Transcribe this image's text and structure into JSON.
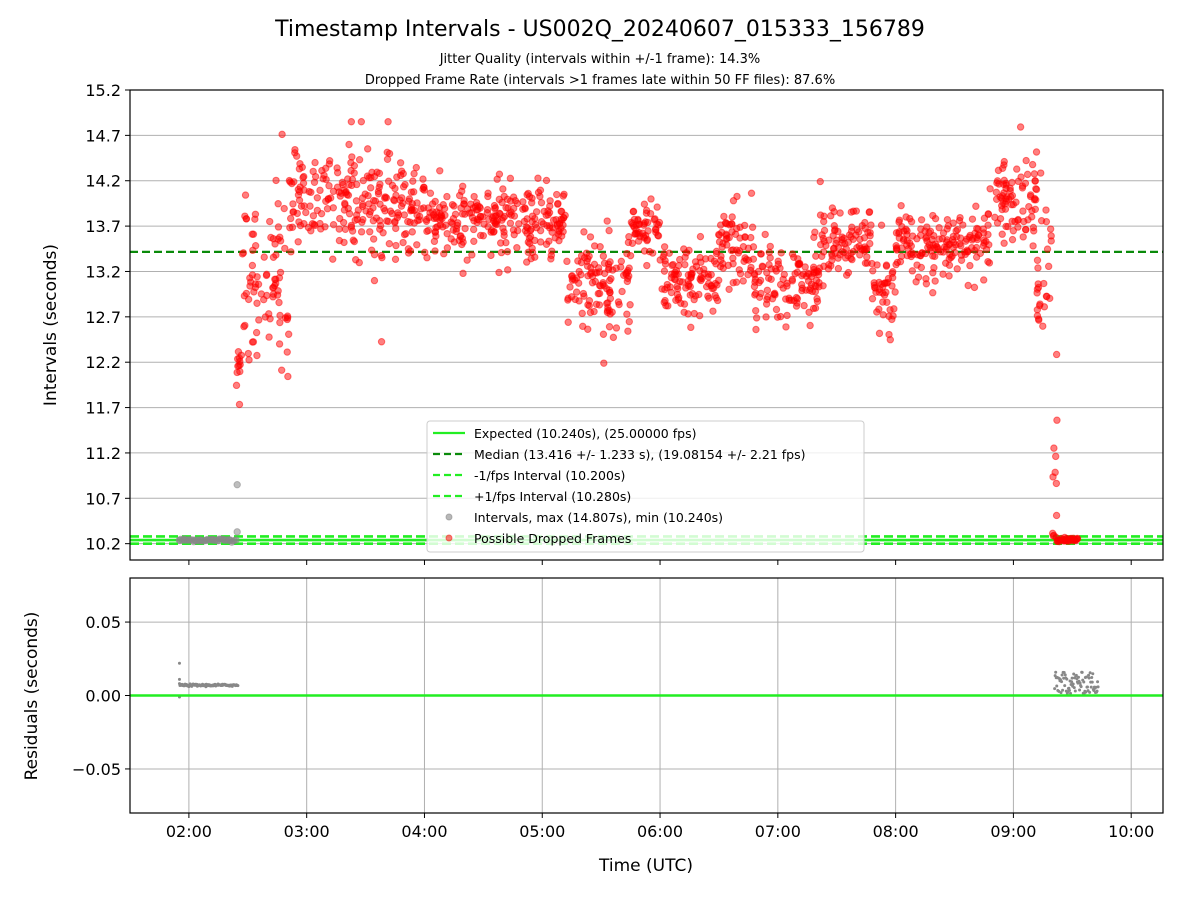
{
  "colors": {
    "expected": "#22ee22",
    "median": "#0a8a0a",
    "jitter_lines": "#22ee22",
    "dropped": "#ff0000",
    "intervals": "#888888",
    "grid": "#b0b0b0",
    "frame": "#000000"
  },
  "chart_data": [
    {
      "type": "scatter",
      "title": "Timestamp Intervals - US002Q_20240607_015333_156789",
      "subtitle_lines": [
        "Jitter Quality (intervals within +/-1 frame): 14.3%",
        "Dropped Frame Rate (intervals >1 frames late within 50 FF files): 87.6%"
      ],
      "xlabel": "",
      "ylabel": "Intervals (seconds)",
      "x_unit": "hours UTC",
      "xlim": [
        1.5,
        10.27
      ],
      "ylim": [
        10.02,
        15.2
      ],
      "x_ticks": [
        2,
        3,
        4,
        5,
        6,
        7,
        8,
        9,
        10
      ],
      "y_ticks": [
        10.2,
        10.7,
        11.2,
        11.7,
        12.2,
        12.7,
        13.2,
        13.7,
        14.2,
        14.7,
        15.2
      ],
      "y_tick_labels": [
        "10.2",
        "10.7",
        "11.2",
        "11.7",
        "12.2",
        "12.7",
        "13.2",
        "13.7",
        "14.2",
        "14.7",
        "15.2"
      ],
      "grid": "y-only",
      "legend_position": "lower center",
      "lines": [
        {
          "name": "Expected (10.240s), (25.00000 fps)",
          "y": 10.24,
          "style": "solid"
        },
        {
          "name": "Median (13.416 +/- 1.233 s), (19.08154 +/- 2.21 fps)",
          "y": 13.416,
          "style": "dashed"
        },
        {
          "name": "-1/fps Interval (10.200s)",
          "y": 10.2,
          "style": "dashed"
        },
        {
          "name": "+1/fps Interval (10.280s)",
          "y": 10.28,
          "style": "dashed"
        }
      ],
      "series": [
        {
          "name": "Intervals, max (14.807s), min (10.240s)",
          "points": [
            [
              1.92,
              10.24
            ],
            [
              1.96,
              10.24
            ],
            [
              2.0,
              10.24
            ],
            [
              2.05,
              10.24
            ],
            [
              2.1,
              10.24
            ],
            [
              2.15,
              10.24
            ],
            [
              2.2,
              10.24
            ],
            [
              2.25,
              10.24
            ],
            [
              2.3,
              10.24
            ],
            [
              2.35,
              10.24
            ],
            [
              2.4,
              10.24
            ],
            [
              2.41,
              10.85
            ],
            [
              2.41,
              10.33
            ]
          ]
        },
        {
          "name": "Possible Dropped Frames",
          "description_segments": [
            {
              "x_range": [
                2.4,
                2.45
              ],
              "y_mean": 12.15,
              "y_spread": 0.15
            },
            {
              "x_range": [
                2.45,
                2.85
              ],
              "y_mean": 13.1,
              "y_spread": 0.55
            },
            {
              "x_range": [
                2.85,
                4.0
              ],
              "y_mean": 13.95,
              "y_spread": 0.3
            },
            {
              "x_range": [
                4.0,
                5.2
              ],
              "y_mean": 13.75,
              "y_spread": 0.22
            },
            {
              "x_range": [
                5.2,
                5.75
              ],
              "y_mean": 13.05,
              "y_spread": 0.3
            },
            {
              "x_range": [
                5.75,
                6.0
              ],
              "y_mean": 13.65,
              "y_spread": 0.2
            },
            {
              "x_range": [
                6.0,
                6.5
              ],
              "y_mean": 13.1,
              "y_spread": 0.25
            },
            {
              "x_range": [
                6.5,
                6.8
              ],
              "y_mean": 13.5,
              "y_spread": 0.3
            },
            {
              "x_range": [
                6.8,
                7.35
              ],
              "y_mean": 13.05,
              "y_spread": 0.25
            },
            {
              "x_range": [
                7.35,
                7.8
              ],
              "y_mean": 13.5,
              "y_spread": 0.25
            },
            {
              "x_range": [
                7.8,
                8.0
              ],
              "y_mean": 13.0,
              "y_spread": 0.25
            },
            {
              "x_range": [
                8.0,
                8.8
              ],
              "y_mean": 13.5,
              "y_spread": 0.2
            },
            {
              "x_range": [
                8.8,
                9.2
              ],
              "y_mean": 13.95,
              "y_spread": 0.3
            },
            {
              "x_range": [
                9.2,
                9.33
              ],
              "y_mean": 12.9,
              "y_spread": 0.6
            },
            {
              "x_range": [
                9.33,
                9.37
              ],
              "y_mean": 11.0,
              "y_spread": 0.6
            },
            {
              "x_range": [
                9.37,
                9.55
              ],
              "y_mean": 10.24,
              "y_spread": 0.0
            }
          ],
          "point_count": 1500
        }
      ]
    },
    {
      "type": "scatter",
      "title": "",
      "xlabel": "Time (UTC)",
      "ylabel": "Residuals (seconds)",
      "xlim": [
        1.5,
        10.27
      ],
      "ylim": [
        -0.08,
        0.08
      ],
      "x_ticks": [
        2,
        3,
        4,
        5,
        6,
        7,
        8,
        9,
        10
      ],
      "x_tick_labels": [
        "02:00",
        "03:00",
        "04:00",
        "05:00",
        "06:00",
        "07:00",
        "08:00",
        "09:00",
        "10:00"
      ],
      "y_ticks": [
        -0.05,
        0.0,
        0.05
      ],
      "y_tick_labels": [
        "−0.05",
        "0.00",
        "0.05"
      ],
      "grid": "both",
      "zero_line": 0.0,
      "series": [
        {
          "name": "Residuals",
          "segments": [
            {
              "x_range": [
                1.92,
                2.42
              ],
              "y": 0.007,
              "extras": [
                [
                  1.92,
                  0.022
                ],
                [
                  1.92,
                  0.011
                ],
                [
                  1.92,
                  -0.001
                ]
              ]
            },
            {
              "x_range": [
                9.35,
                9.72
              ],
              "y_band": [
                0.001,
                0.016
              ]
            }
          ]
        }
      ]
    }
  ]
}
